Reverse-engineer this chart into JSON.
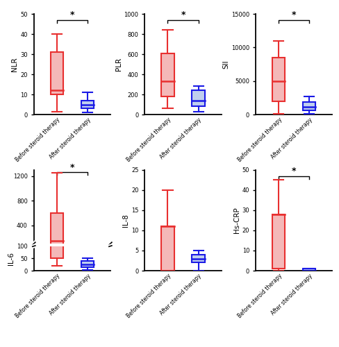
{
  "subplots": [
    {
      "ylabel": "NLR",
      "ylim": [
        0,
        50
      ],
      "yticks": [
        0,
        10,
        20,
        30,
        40,
        50
      ],
      "before": {
        "whislo": 1.5,
        "q1": 10,
        "med": 12,
        "q3": 31,
        "whishi": 40
      },
      "after": {
        "whislo": 1.0,
        "q1": 3,
        "med": 5,
        "q3": 7,
        "whishi": 11
      },
      "sig": true,
      "broken_axis": false
    },
    {
      "ylabel": "PLR",
      "ylim": [
        0,
        1000
      ],
      "yticks": [
        0,
        200,
        400,
        600,
        800,
        1000
      ],
      "before": {
        "whislo": 60,
        "q1": 180,
        "med": 330,
        "q3": 610,
        "whishi": 840
      },
      "after": {
        "whislo": 25,
        "q1": 80,
        "med": 140,
        "q3": 240,
        "whishi": 280
      },
      "sig": true,
      "broken_axis": false
    },
    {
      "ylabel": "SII",
      "ylim": [
        0,
        15000
      ],
      "yticks": [
        0,
        5000,
        10000,
        15000
      ],
      "before": {
        "whislo": 100,
        "q1": 2000,
        "med": 5000,
        "q3": 8500,
        "whishi": 11000
      },
      "after": {
        "whislo": 100,
        "q1": 600,
        "med": 1100,
        "q3": 1900,
        "whishi": 2700
      },
      "sig": true,
      "broken_axis": false
    },
    {
      "ylabel": "IL-6",
      "ylim_lo": [
        0,
        100
      ],
      "ylim_hi": [
        100,
        1300
      ],
      "yticks_lo": [
        0,
        50,
        100
      ],
      "yticks_hi": [
        400,
        800,
        1200
      ],
      "before": {
        "whislo": 20,
        "q1": 50,
        "med": 150,
        "q3": 600,
        "whishi": 1250
      },
      "after": {
        "whislo": 2,
        "q1": 15,
        "med": 25,
        "q3": 40,
        "whishi": 50
      },
      "sig": true,
      "broken_axis": true
    },
    {
      "ylabel": "IL-8",
      "ylim": [
        0,
        25
      ],
      "yticks": [
        0,
        5,
        10,
        15,
        20,
        25
      ],
      "before": {
        "whislo": 0,
        "q1": 0,
        "med": 11,
        "q3": 11,
        "whishi": 20
      },
      "after": {
        "whislo": 0,
        "q1": 2,
        "med": 3,
        "q3": 4,
        "whishi": 5
      },
      "sig": false,
      "broken_axis": false
    },
    {
      "ylabel": "Hs-CRP",
      "ylim": [
        0,
        50
      ],
      "yticks": [
        0,
        10,
        20,
        30,
        40,
        50
      ],
      "before": {
        "whislo": 0,
        "q1": 1,
        "med": 28,
        "q3": 28,
        "whishi": 45
      },
      "after": {
        "whislo": 0,
        "q1": 0,
        "med": 0,
        "q3": 1,
        "whishi": 1
      },
      "sig": true,
      "broken_axis": false
    }
  ],
  "red_face": "#F4B8B8",
  "red_edge": "#E83030",
  "blue_face": "#C0CFEE",
  "blue_edge": "#1A1AE6",
  "xlabel_before": "Before steroid therapy",
  "xlabel_after": "After steroid therapy",
  "sig_text": "*",
  "box_width": 0.42
}
